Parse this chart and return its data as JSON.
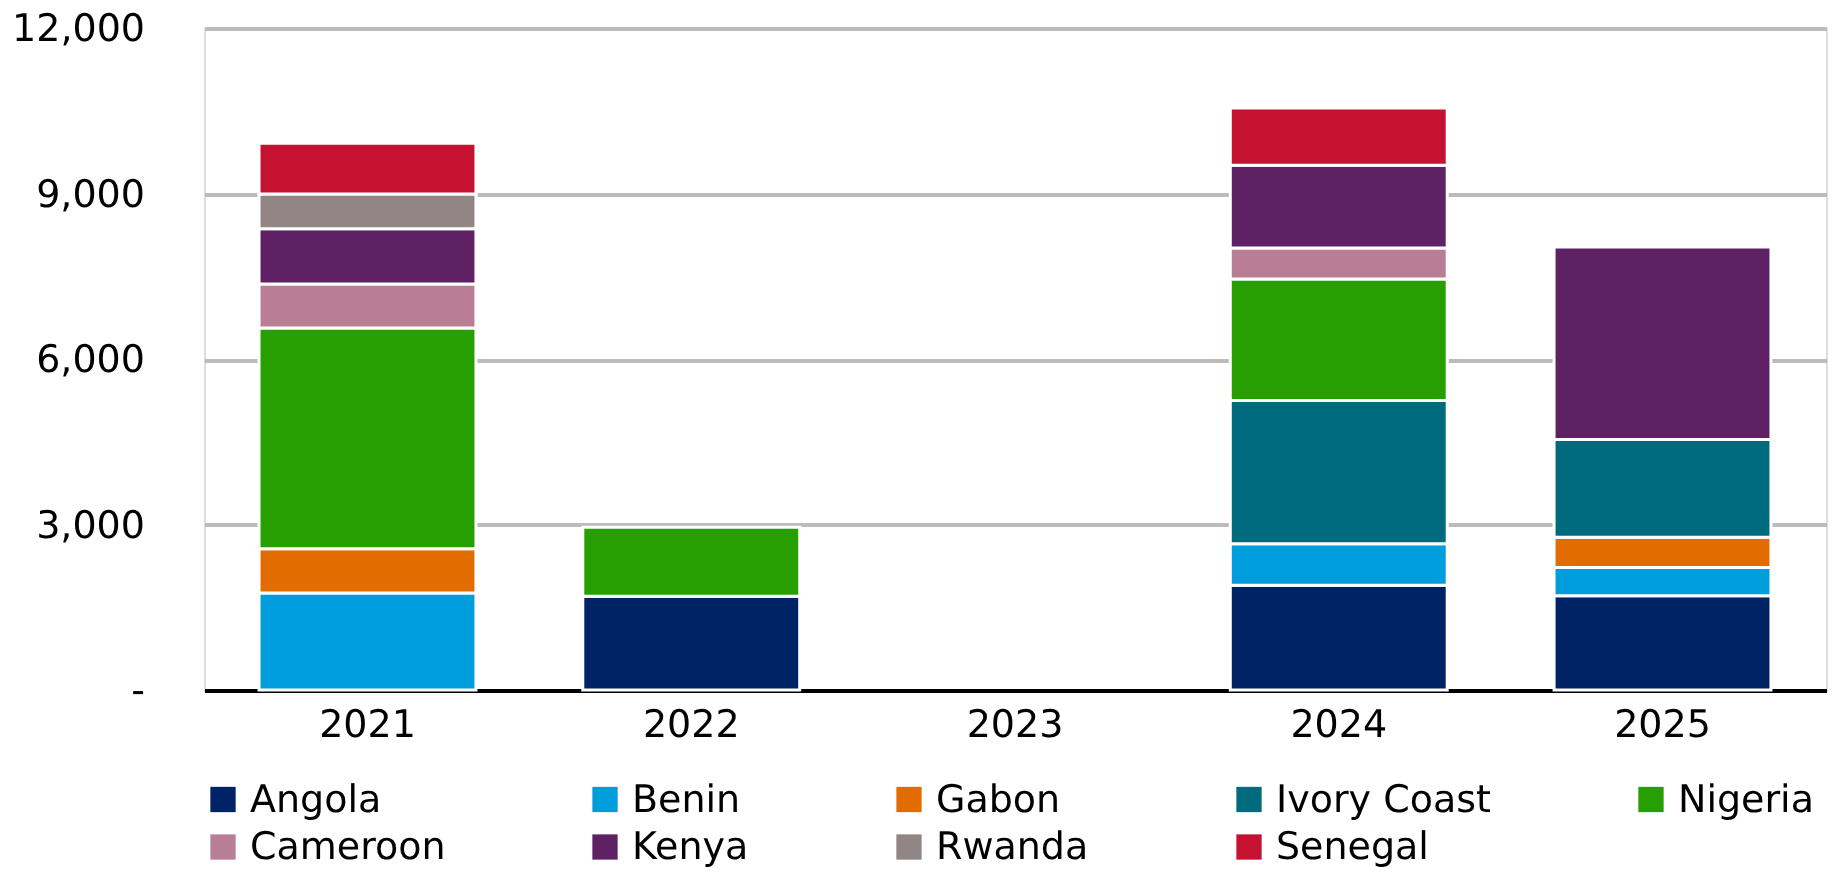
{
  "chart_data": {
    "type": "bar",
    "stacked": true,
    "categories": [
      "2021",
      "2022",
      "2023",
      "2024",
      "2025"
    ],
    "series": [
      {
        "name": "Angola",
        "color": "#002366",
        "values": [
          null,
          1700,
          null,
          1900,
          1710
        ]
      },
      {
        "name": "Benin",
        "color": "#009ddc",
        "values": [
          1760,
          null,
          null,
          750,
          510
        ]
      },
      {
        "name": "Gabon",
        "color": "#e36c00",
        "values": [
          800,
          null,
          null,
          null,
          550
        ]
      },
      {
        "name": "Ivory Coast",
        "color": "#006a7e",
        "values": [
          null,
          null,
          null,
          2600,
          1770
        ]
      },
      {
        "name": "Nigeria",
        "color": "#279f00",
        "values": [
          4000,
          1250,
          null,
          2200,
          null
        ]
      },
      {
        "name": "Cameroon",
        "color": "#b97e96",
        "values": [
          800,
          null,
          null,
          560,
          null
        ]
      },
      {
        "name": "Kenya",
        "color": "#5e2264",
        "values": [
          1000,
          null,
          null,
          1500,
          3490
        ]
      },
      {
        "name": "Rwanda",
        "color": "#928585",
        "values": [
          630,
          null,
          null,
          null,
          null
        ]
      },
      {
        "name": "Senegal",
        "color": "#c41230",
        "values": [
          920,
          null,
          null,
          1040,
          null
        ]
      }
    ],
    "ylim": [
      0,
      12000
    ],
    "yticks": [
      {
        "value": 0,
        "label": "-"
      },
      {
        "value": 3000,
        "label": "3,000"
      },
      {
        "value": 6000,
        "label": "6,000"
      },
      {
        "value": 9000,
        "label": "9,000"
      },
      {
        "value": 12000,
        "label": "12,000"
      }
    ],
    "grid": "y",
    "legend": "bottom"
  }
}
